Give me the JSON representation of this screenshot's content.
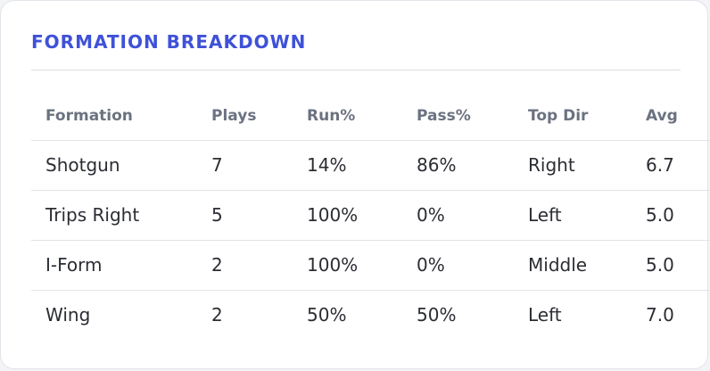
{
  "title": "FORMATION BREAKDOWN",
  "table": {
    "headers": [
      "Formation",
      "Plays",
      "Run%",
      "Pass%",
      "Top Dir",
      "Avg"
    ],
    "rows": [
      [
        "Shotgun",
        "7",
        "14%",
        "86%",
        "Right",
        "6.7"
      ],
      [
        "Trips Right",
        "5",
        "100%",
        "0%",
        "Left",
        "5.0"
      ],
      [
        "I-Form",
        "2",
        "100%",
        "0%",
        "Middle",
        "5.0"
      ],
      [
        "Wing",
        "2",
        "50%",
        "50%",
        "Left",
        "7.0"
      ]
    ]
  },
  "colors": {
    "accent": "#3f51d8",
    "header_text": "#6b7280",
    "body_text": "#2b2d33"
  }
}
